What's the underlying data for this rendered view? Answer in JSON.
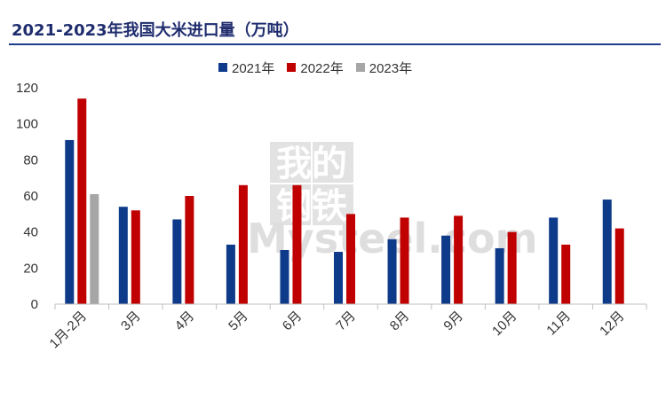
{
  "title": "2021-2023年我国大米进口量（万吨）",
  "watermark": {
    "line1": "我的",
    "line2": "钢铁",
    "brand": "Mysteel.com"
  },
  "colors": {
    "s2021": "#0e3a8a",
    "s2022": "#c00000",
    "s2023": "#a6a6a6",
    "axis": "#bfbfbf"
  },
  "chart_data": {
    "type": "bar",
    "title": "2021-2023年我国大米进口量（万吨）",
    "xlabel": "",
    "ylabel": "",
    "ylim": [
      0,
      120
    ],
    "yticks": [
      0,
      20,
      40,
      60,
      80,
      100,
      120
    ],
    "grid": false,
    "legend_position": "top-center",
    "categories": [
      "1月-2月",
      "3月",
      "4月",
      "5月",
      "6月",
      "7月",
      "8月",
      "9月",
      "10月",
      "11月",
      "12月"
    ],
    "series": [
      {
        "name": "2021年",
        "color": "#0e3a8a",
        "values": [
          91,
          54,
          47,
          33,
          30,
          29,
          36,
          38,
          31,
          48,
          58
        ]
      },
      {
        "name": "2022年",
        "color": "#c00000",
        "values": [
          114,
          52,
          60,
          66,
          66,
          50,
          48,
          49,
          40,
          33,
          42
        ]
      },
      {
        "name": "2023年",
        "color": "#a6a6a6",
        "values": [
          61,
          null,
          null,
          null,
          null,
          null,
          null,
          null,
          null,
          null,
          null
        ]
      }
    ]
  }
}
